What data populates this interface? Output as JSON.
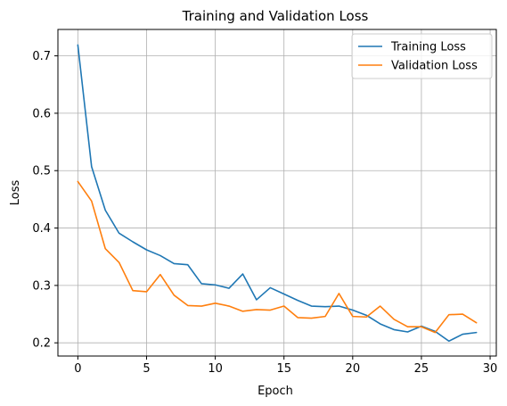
{
  "chart_data": {
    "type": "line",
    "title": "Training and Validation Loss",
    "xlabel": "Epoch",
    "ylabel": "Loss",
    "xlim": [
      -1.45,
      30.45
    ],
    "ylim": [
      0.177,
      0.746
    ],
    "xticks": [
      0,
      5,
      10,
      15,
      20,
      25,
      30
    ],
    "yticks": [
      0.2,
      0.3,
      0.4,
      0.5,
      0.6,
      0.7
    ],
    "grid": true,
    "legend_position": "top-right",
    "x": [
      0,
      1,
      2,
      3,
      4,
      5,
      6,
      7,
      8,
      9,
      10,
      11,
      12,
      13,
      14,
      15,
      16,
      17,
      18,
      19,
      20,
      21,
      22,
      23,
      24,
      25,
      26,
      27,
      28,
      29
    ],
    "series": [
      {
        "name": "Training Loss",
        "color": "#1f77b4",
        "values": [
          0.719,
          0.507,
          0.431,
          0.391,
          0.376,
          0.362,
          0.352,
          0.338,
          0.336,
          0.303,
          0.301,
          0.295,
          0.32,
          0.275,
          0.296,
          0.285,
          0.274,
          0.264,
          0.263,
          0.264,
          0.257,
          0.248,
          0.233,
          0.223,
          0.219,
          0.229,
          0.22,
          0.203,
          0.215,
          0.218
        ]
      },
      {
        "name": "Validation Loss",
        "color": "#ff7f0e",
        "values": [
          0.481,
          0.447,
          0.364,
          0.34,
          0.291,
          0.289,
          0.319,
          0.283,
          0.265,
          0.264,
          0.269,
          0.264,
          0.255,
          0.258,
          0.257,
          0.264,
          0.244,
          0.243,
          0.246,
          0.286,
          0.246,
          0.245,
          0.264,
          0.241,
          0.228,
          0.228,
          0.218,
          0.249,
          0.25,
          0.235
        ]
      }
    ]
  }
}
